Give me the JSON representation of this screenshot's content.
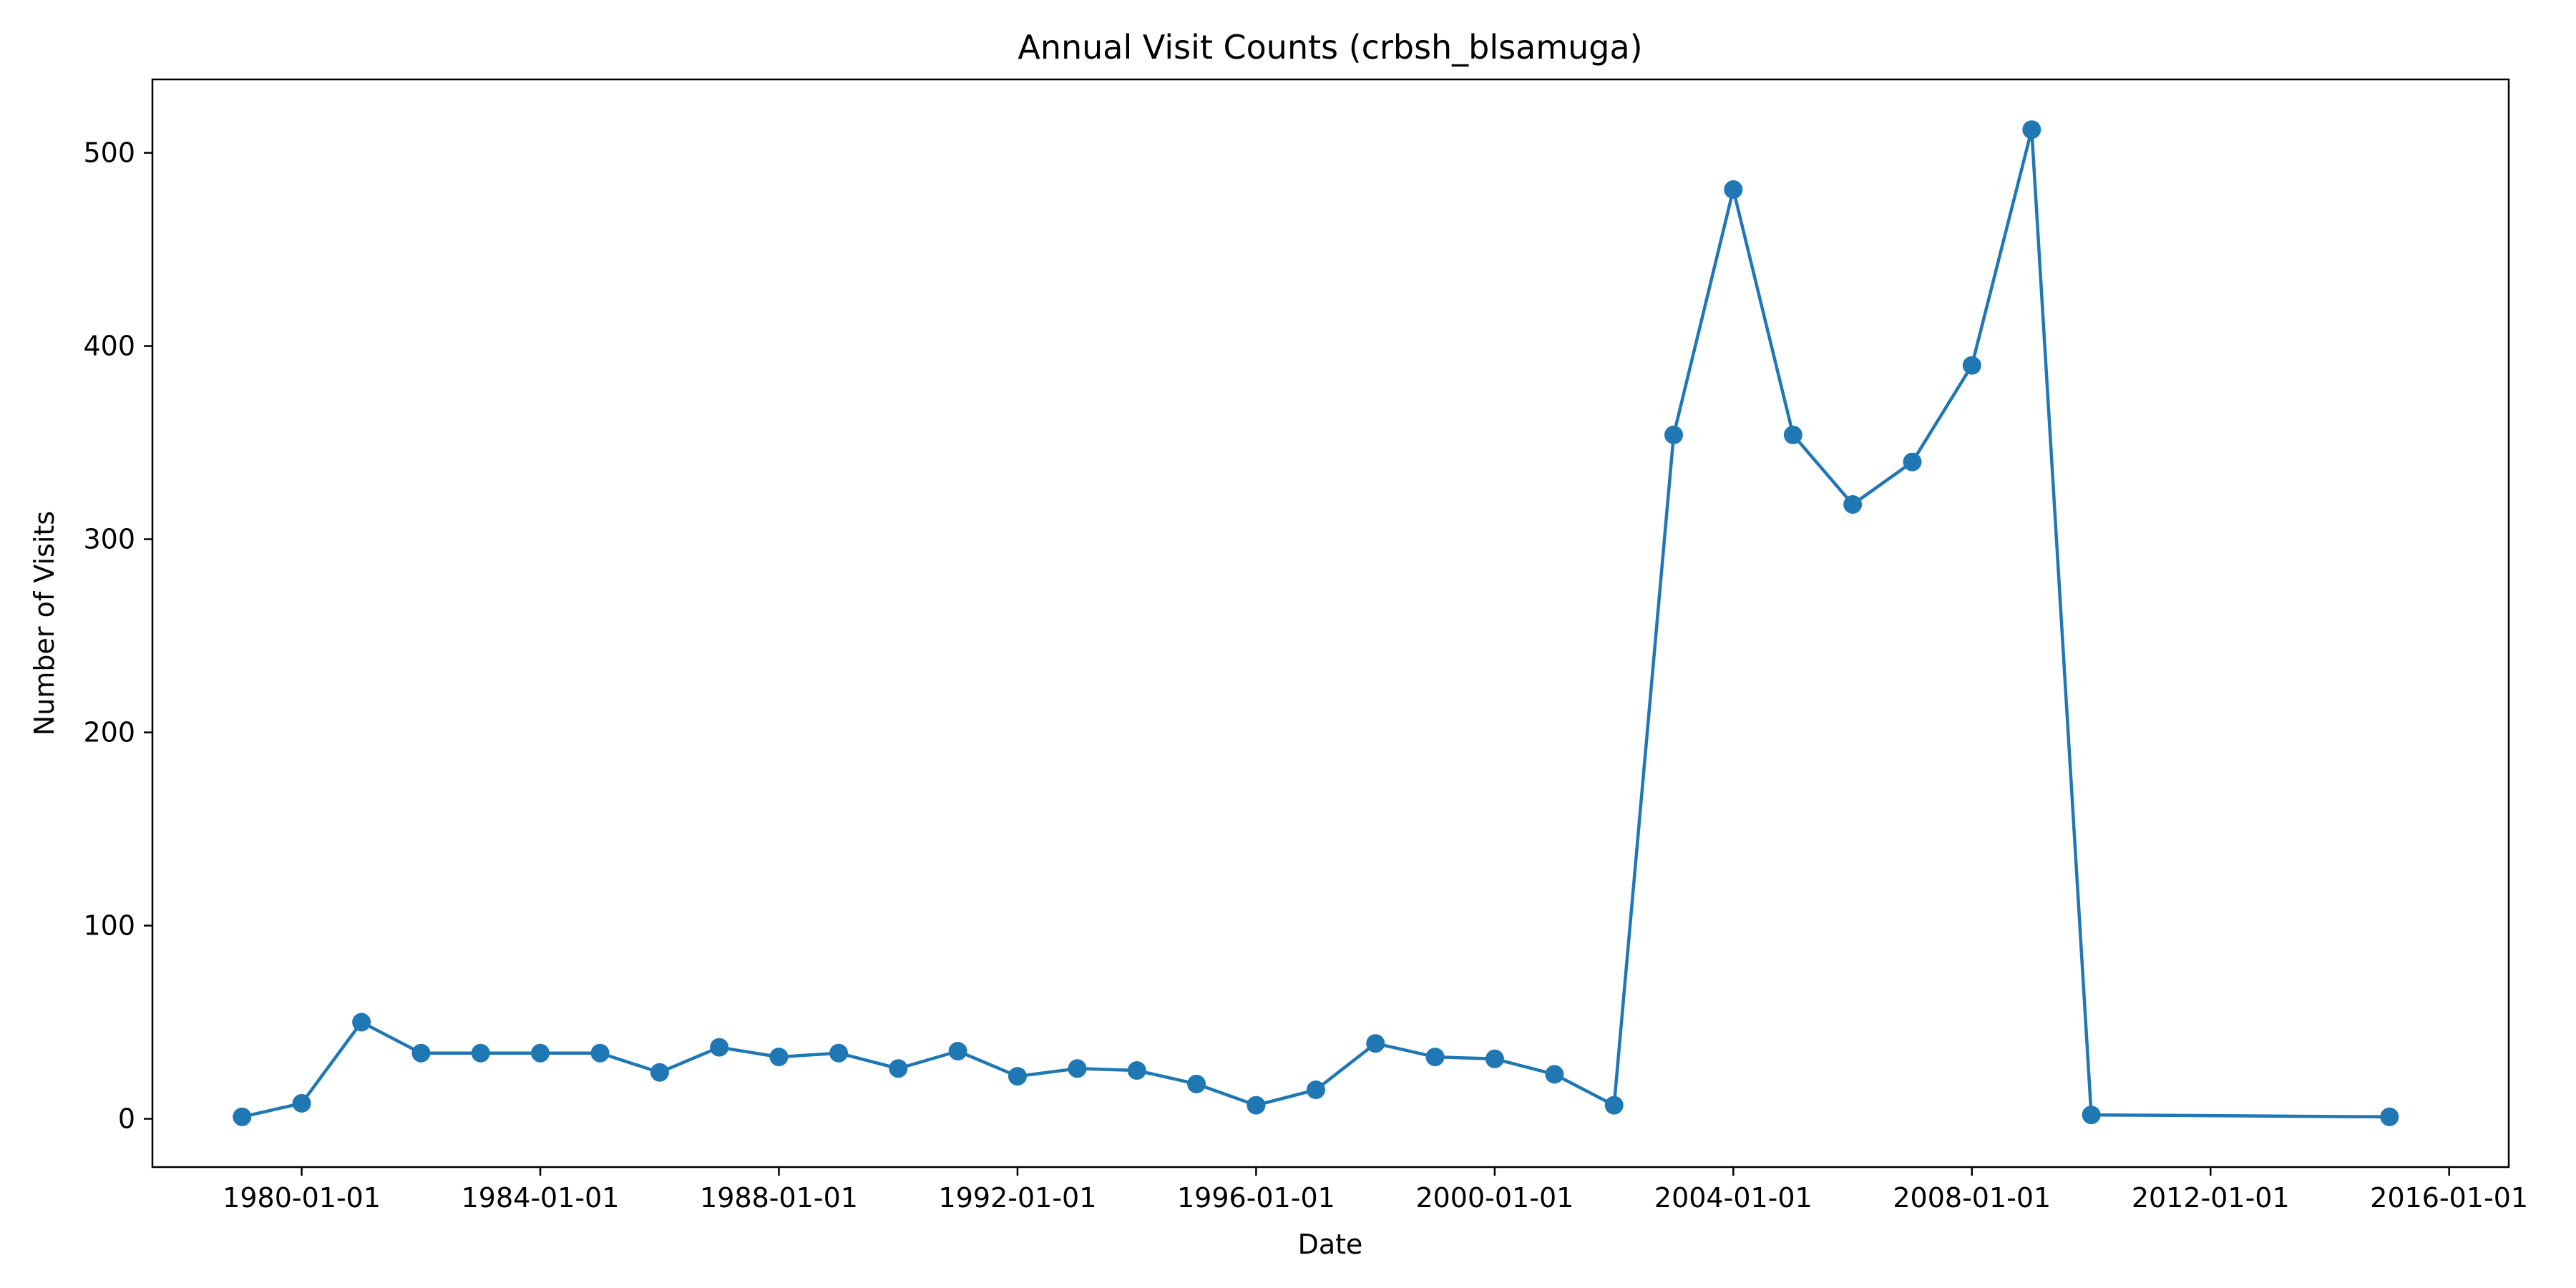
{
  "chart_data": {
    "type": "line",
    "title": "Annual Visit Counts (crbsh_blsamuga)",
    "xlabel": "Date",
    "ylabel": "Number of Visits",
    "x_tick_labels": [
      "1980-01-01",
      "1984-01-01",
      "1988-01-01",
      "1992-01-01",
      "1996-01-01",
      "2000-01-01",
      "2004-01-01",
      "2008-01-01",
      "2012-01-01",
      "2016-01-01"
    ],
    "y_tick_labels": [
      "0",
      "100",
      "200",
      "300",
      "400",
      "500"
    ],
    "xlim": [
      "1977-07-01",
      "2016-12-31"
    ],
    "ylim": [
      -25,
      538
    ],
    "grid": false,
    "legend": "none",
    "series": [
      {
        "color": "#1f77b4",
        "marker": "circle",
        "x": [
          "1979-01-01",
          "1980-01-01",
          "1981-01-01",
          "1982-01-01",
          "1983-01-01",
          "1984-01-01",
          "1985-01-01",
          "1986-01-01",
          "1987-01-01",
          "1988-01-01",
          "1989-01-01",
          "1990-01-01",
          "1991-01-01",
          "1992-01-01",
          "1993-01-01",
          "1994-01-01",
          "1995-01-01",
          "1996-01-01",
          "1997-01-01",
          "1998-01-01",
          "1999-01-01",
          "2000-01-01",
          "2001-01-01",
          "2002-01-01",
          "2003-01-01",
          "2004-01-01",
          "2005-01-01",
          "2006-01-01",
          "2007-01-01",
          "2008-01-01",
          "2009-01-01",
          "2010-01-01",
          "2015-01-01"
        ],
        "y": [
          1,
          8,
          50,
          34,
          34,
          34,
          34,
          24,
          37,
          32,
          34,
          26,
          35,
          22,
          26,
          25,
          18,
          7,
          15,
          39,
          32,
          31,
          23,
          7,
          354,
          481,
          354,
          318,
          340,
          390,
          512,
          2,
          1
        ]
      }
    ]
  }
}
